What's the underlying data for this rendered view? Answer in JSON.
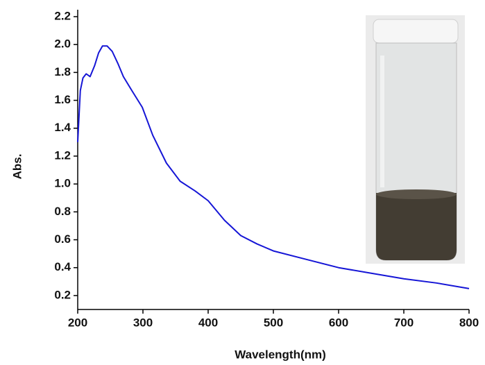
{
  "chart_data": {
    "type": "line",
    "x_label": "Wavelength(nm)",
    "y_label": "Abs.",
    "xlim": [
      200,
      800
    ],
    "xticks": [
      200,
      300,
      400,
      500,
      600,
      700,
      800
    ],
    "ylim": [
      0.1,
      2.2
    ],
    "yticks": [
      0.2,
      0.4,
      0.6,
      0.8,
      {
        "value": 1,
        "label": "1.0"
      },
      1.2,
      1.4,
      1.6,
      1.8,
      {
        "value": 2,
        "label": "2.0"
      },
      2.2
    ],
    "series": [
      {
        "name": "Abs.",
        "color": "#1515d6",
        "x": [
          200,
          204,
          208,
          213,
          219,
          226,
          232,
          238,
          245,
          253,
          262,
          270,
          283,
          299,
          315,
          336,
          357,
          380,
          400,
          425,
          450,
          475,
          500,
          550,
          600,
          650,
          700,
          750,
          800
        ],
        "values": [
          1.3,
          1.67,
          1.76,
          1.79,
          1.77,
          1.85,
          1.94,
          1.99,
          1.99,
          1.95,
          1.86,
          1.77,
          1.67,
          1.55,
          1.35,
          1.15,
          1.02,
          0.95,
          0.88,
          0.74,
          0.63,
          0.57,
          0.52,
          0.46,
          0.4,
          0.36,
          0.32,
          0.29,
          0.25
        ]
      }
    ]
  }
}
